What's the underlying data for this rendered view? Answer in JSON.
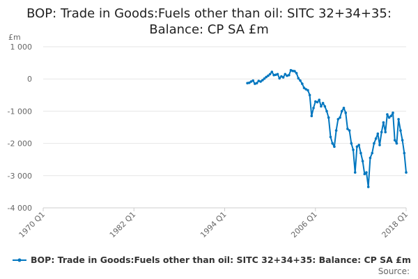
{
  "chart_data": {
    "type": "line",
    "title_line1": "BOP: Trade in Goods:Fuels other than oil: SITC 32+34+35:",
    "title_line2": "Balance: CP SA £m",
    "unit_label": "£m",
    "ylim": [
      -4000,
      1000
    ],
    "y_ticks": [
      1000,
      0,
      -1000,
      -2000,
      -3000,
      -4000
    ],
    "y_tick_labels": [
      "1 000",
      "0",
      "-1 000",
      "-2 000",
      "-3 000",
      "-4 000"
    ],
    "x_range": [
      1970,
      2018
    ],
    "x_ticks": [
      1970,
      1982,
      1994,
      2006,
      2018
    ],
    "x_tick_labels": [
      "1970 Q1",
      "1982 Q1",
      "1994 Q1",
      "2006 Q1",
      "2018 Q1"
    ],
    "grid": true,
    "legend_position": "bottom",
    "source_label": "Source:",
    "series": [
      {
        "name": "BOP: Trade in Goods:Fuels other than oil: SITC 32+34+35: Balance: CP SA £m",
        "color": "#0076bf",
        "x": [
          1997.0,
          1997.25,
          1997.5,
          1997.75,
          1998.0,
          1998.25,
          1998.5,
          1998.75,
          1999.0,
          1999.25,
          1999.5,
          1999.75,
          2000.0,
          2000.25,
          2000.5,
          2000.75,
          2001.0,
          2001.25,
          2001.5,
          2001.75,
          2002.0,
          2002.25,
          2002.5,
          2002.75,
          2003.0,
          2003.25,
          2003.5,
          2003.75,
          2004.0,
          2004.25,
          2004.5,
          2004.75,
          2005.0,
          2005.25,
          2005.5,
          2005.75,
          2006.0,
          2006.25,
          2006.5,
          2006.75,
          2007.0,
          2007.25,
          2007.5,
          2007.75,
          2008.0,
          2008.25,
          2008.5,
          2008.75,
          2009.0,
          2009.25,
          2009.5,
          2009.75,
          2010.0,
          2010.25,
          2010.5,
          2010.75,
          2011.0,
          2011.25,
          2011.5,
          2011.75,
          2012.0,
          2012.25,
          2012.5,
          2012.75,
          2013.0,
          2013.25,
          2013.5,
          2013.75,
          2014.0,
          2014.25,
          2014.5,
          2014.75,
          2015.0,
          2015.25,
          2015.5,
          2015.75,
          2016.0,
          2016.25,
          2016.5,
          2016.75,
          2017.0,
          2017.25,
          2017.5,
          2017.75,
          2018.0
        ],
        "y": [
          -130,
          -120,
          -80,
          -50,
          -150,
          -130,
          -60,
          -80,
          -40,
          10,
          60,
          100,
          150,
          220,
          120,
          130,
          150,
          20,
          80,
          50,
          150,
          100,
          120,
          270,
          250,
          240,
          180,
          20,
          -50,
          -150,
          -280,
          -320,
          -350,
          -500,
          -1150,
          -900,
          -700,
          -720,
          -650,
          -850,
          -750,
          -850,
          -1000,
          -1200,
          -1800,
          -2000,
          -2100,
          -1600,
          -1250,
          -1200,
          -1000,
          -900,
          -1050,
          -1550,
          -1600,
          -2000,
          -2200,
          -2900,
          -2100,
          -2050,
          -2300,
          -2550,
          -2950,
          -2900,
          -3350,
          -2450,
          -2300,
          -2000,
          -1850,
          -1700,
          -2050,
          -1650,
          -1350,
          -1650,
          -1100,
          -1200,
          -1150,
          -1050,
          -1900,
          -2000,
          -1250,
          -1600,
          -1900,
          -2300,
          -2900
        ]
      }
    ]
  }
}
